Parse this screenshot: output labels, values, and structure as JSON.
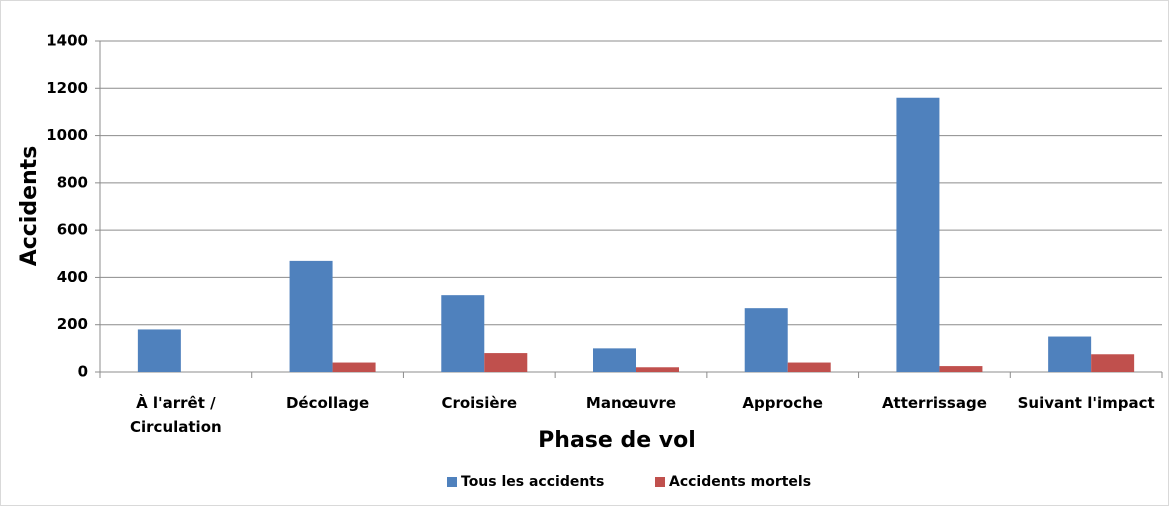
{
  "chart_data": {
    "type": "bar",
    "x_label": "Phase de vol",
    "y_label": "Accidents",
    "categories": [
      "À l'arrêt / Circulation",
      "Décollage",
      "Croisière",
      "Manœuvre",
      "Approche",
      "Atterrissage",
      "Suivant l'impact"
    ],
    "series": [
      {
        "name": "Tous les accidents",
        "color": "#4f81bd",
        "values": [
          180,
          470,
          325,
          100,
          270,
          1160,
          150
        ]
      },
      {
        "name": "Accidents mortels",
        "color": "#c0504d",
        "values": [
          0,
          40,
          80,
          20,
          40,
          25,
          75
        ]
      }
    ],
    "ylim": [
      0,
      1400
    ],
    "yticks": [
      0,
      200,
      400,
      600,
      800,
      1000,
      1200,
      1400
    ],
    "grid": true,
    "legend": "bottom"
  }
}
